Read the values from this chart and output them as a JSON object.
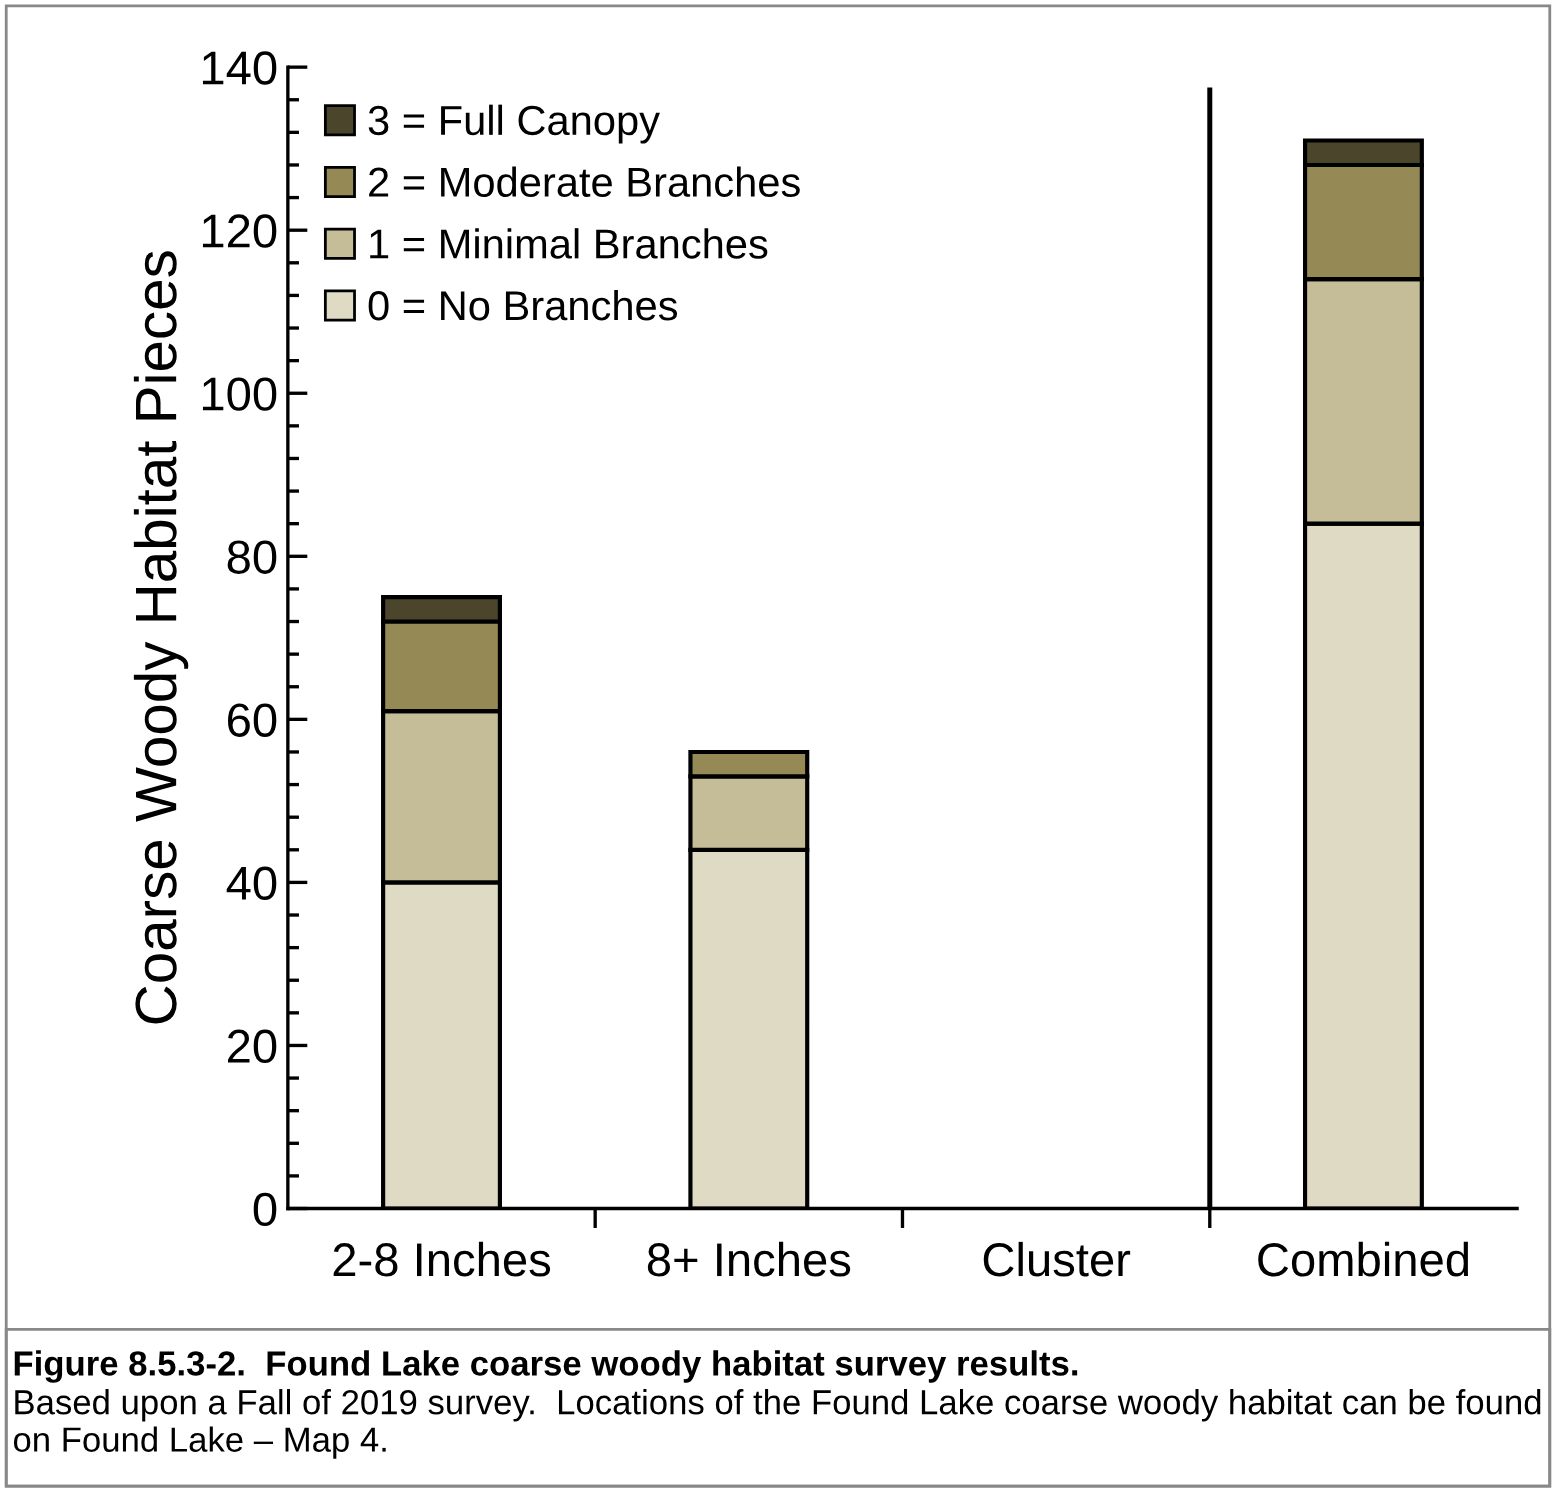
{
  "chart_data": {
    "type": "bar",
    "stacked": true,
    "ylabel": "Coarse Woody Habitat Pieces",
    "categories": [
      "2-8 Inches",
      "8+ Inches",
      "Cluster",
      "Combined"
    ],
    "series": [
      {
        "name": "0 = No Branches",
        "color": "#dedac3",
        "values": [
          40,
          44,
          null,
          84
        ]
      },
      {
        "name": "1 = Minimal Branches",
        "color": "#c5bd98",
        "values": [
          21,
          9,
          null,
          30
        ]
      },
      {
        "name": "2 = Moderate Branches",
        "color": "#958a55",
        "values": [
          11,
          3,
          null,
          14
        ]
      },
      {
        "name": "3 = Full Canopy",
        "color": "#4b452c",
        "values": [
          3,
          null,
          null,
          3
        ]
      }
    ],
    "ylim": [
      0,
      140
    ],
    "yticks": [
      0,
      20,
      40,
      60,
      80,
      100,
      120,
      140
    ],
    "legend": "top left",
    "grid": false,
    "annotations": [
      "Figure 8.5.3-2.  Found Lake coarse woody habitat survey results.",
      "Based upon a Fall of 2019 survey.  Locations of the Found Lake coarse woody habitat can be found on Found Lake – Map 4."
    ]
  }
}
